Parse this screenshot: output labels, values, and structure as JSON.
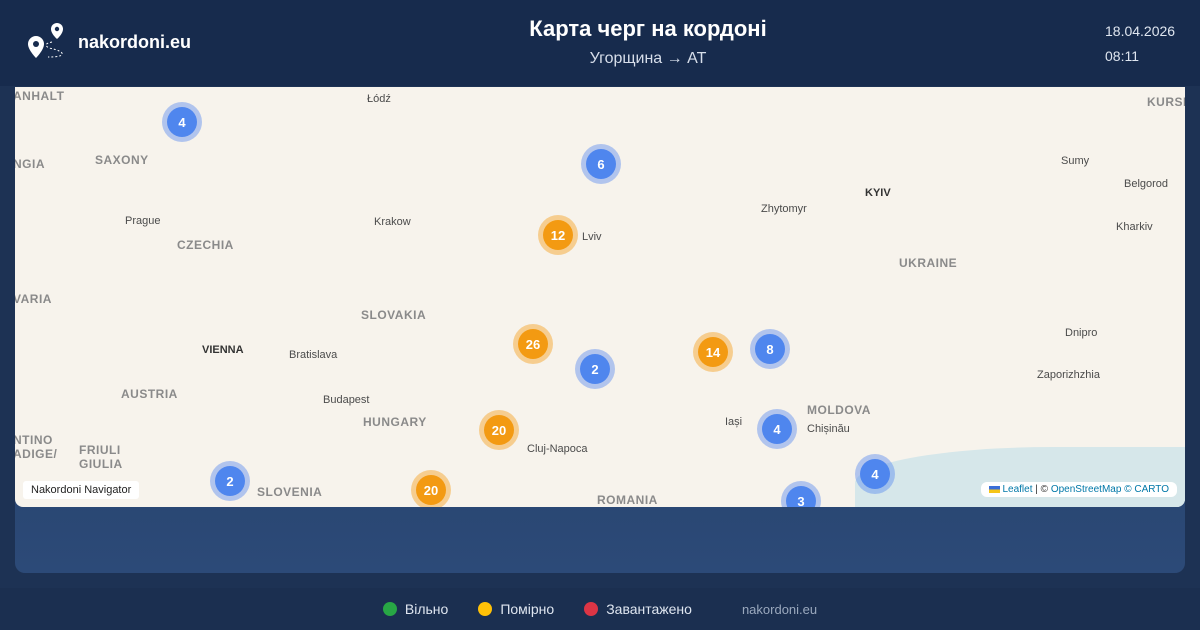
{
  "header": {
    "site": "nakordoni.eu",
    "title": "Карта черг на кордоні",
    "subtitle": "Угорщина → AT",
    "date": "18.04.2026",
    "time": "08:11"
  },
  "map": {
    "labels": [
      "ANHALT",
      "Łódź",
      "KURSK OBLAS",
      "SAXONY",
      "NGIA",
      "Prague",
      "Krakow",
      "Lviv",
      "Zhytomyr",
      "KYIV",
      "Sumy",
      "Belgorod",
      "CZECHIA",
      "Kharkiv",
      "UKRAINE",
      "VARIA",
      "SLOVAKIA",
      "Dnipro",
      "VIENNA",
      "Bratislava",
      "Zaporizhzhia",
      "AUSTRIA",
      "Budapest",
      "HUNGARY",
      "Iași",
      "MOLDOVA",
      "Chișinău",
      "Cluj-Napoca",
      "SLOVENIA",
      "ROMANIA",
      "FRIULI GIULIA",
      "NTINO ADIGE/"
    ],
    "clusters": [
      {
        "count": "4",
        "status": "blue"
      },
      {
        "count": "6",
        "status": "blue"
      },
      {
        "count": "12",
        "status": "orange"
      },
      {
        "count": "26",
        "status": "orange"
      },
      {
        "count": "2",
        "status": "blue"
      },
      {
        "count": "14",
        "status": "orange"
      },
      {
        "count": "8",
        "status": "blue"
      },
      {
        "count": "20",
        "status": "orange"
      },
      {
        "count": "4",
        "status": "blue"
      },
      {
        "count": "2",
        "status": "blue"
      },
      {
        "count": "20",
        "status": "orange"
      },
      {
        "count": "4",
        "status": "blue"
      },
      {
        "count": "3",
        "status": "blue"
      }
    ],
    "navigator": "Nakordoni Navigator",
    "attribution": {
      "leaflet": "Leaflet",
      "sep": "| ©",
      "osm": "OpenStreetMap",
      "carto": "© CARTO"
    }
  },
  "legend": [
    {
      "label": "Вільно",
      "color": "#28a745"
    },
    {
      "label": "Помірно",
      "color": "#ffc107"
    },
    {
      "label": "Завантажено",
      "color": "#dc3545"
    }
  ],
  "footer": {
    "site": "nakordoni.eu"
  }
}
